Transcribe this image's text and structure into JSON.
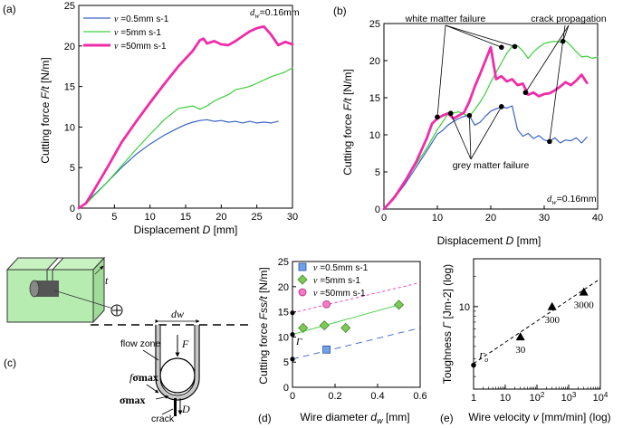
{
  "colors": {
    "blue": "#3a62c8",
    "green": "#3ccf3c",
    "magenta": "#f02ca8",
    "block": "#b6ecb0",
    "blockEdge": "#333333",
    "ptBlue": "#6fa2ea",
    "ptGreen": "#7ec857",
    "ptPink": "#f37ac6"
  },
  "chart_data": [
    {
      "panel": "(a)",
      "type": "line",
      "xlabel_pre": "Displacement ",
      "xlabel_var": "D",
      "xlabel_post": " [mm]",
      "ylabel_pre": "Cutting force ",
      "ylabel_var": "F/t",
      "ylabel_post": " [N/m]",
      "xlim": [
        0,
        30
      ],
      "ylim": [
        0,
        25
      ],
      "xticks": [
        "0",
        "5",
        "10",
        "15",
        "20",
        "25",
        "30"
      ],
      "yticks": [
        "0",
        "5",
        "10",
        "15",
        "20",
        "25"
      ],
      "annotation": "dw=0.16mm",
      "legend": [
        {
          "sym": "v",
          "text": " =0.5mm s-1",
          "color": "blue"
        },
        {
          "sym": "v",
          "text": " =5mm s-1",
          "color": "green"
        },
        {
          "sym": "v",
          "text": " =50mm s-1",
          "color": "magenta"
        }
      ],
      "series": [
        {
          "name": "v =0.5mm s-1",
          "color": "blue",
          "width": 1.2,
          "x": [
            0,
            1,
            2,
            4,
            6,
            8,
            10,
            12,
            14,
            15,
            16,
            17,
            18,
            19,
            20,
            21,
            22,
            23,
            24,
            25,
            26,
            27,
            28
          ],
          "y": [
            0,
            0.6,
            1.5,
            3.2,
            5,
            6.6,
            7.9,
            9,
            9.9,
            10.3,
            10.6,
            10.8,
            10.9,
            10.7,
            10.8,
            10.6,
            10.7,
            10.5,
            10.7,
            10.5,
            10.6,
            10.5,
            10.7
          ]
        },
        {
          "name": "v =5mm s-1",
          "color": "green",
          "width": 1.2,
          "x": [
            0,
            1,
            2,
            4,
            6,
            8,
            10,
            12,
            14,
            16,
            17,
            18,
            19,
            20,
            21,
            22,
            23,
            24,
            25,
            26,
            27,
            28,
            29,
            30
          ],
          "y": [
            0,
            0.5,
            1.4,
            3.2,
            5.2,
            7.2,
            9.1,
            10.9,
            12.3,
            12.6,
            12.2,
            12.6,
            13.2,
            13.6,
            14,
            14.6,
            14.8,
            15,
            15.4,
            15.8,
            16.2,
            16.5,
            16.8,
            17.3
          ]
        },
        {
          "name": "v =50mm s-1",
          "color": "magenta",
          "width": 2.8,
          "x": [
            0,
            1,
            2,
            4,
            6,
            8,
            10,
            12,
            14,
            16,
            17,
            17.5,
            18,
            19,
            20,
            21,
            22,
            23,
            24,
            25,
            26,
            27,
            28,
            29,
            30
          ],
          "y": [
            0,
            0.6,
            2,
            5,
            8.1,
            10.6,
            13,
            15.3,
            17.5,
            19.4,
            20.7,
            20.9,
            20.3,
            20.6,
            20.2,
            20.1,
            20.6,
            21.2,
            21.8,
            22.2,
            22.4,
            21.4,
            20.1,
            20.5,
            20.2
          ]
        }
      ]
    },
    {
      "panel": "(b)",
      "type": "line",
      "xlabel_pre": "Displacement ",
      "xlabel_var": "D",
      "xlabel_post": " [mm]",
      "ylabel_pre": "Cutting force ",
      "ylabel_var": "F/t",
      "ylabel_post": " [N/m]",
      "xlim": [
        0,
        40
      ],
      "ylim": [
        0,
        25
      ],
      "xticks": [
        "0",
        "10",
        "20",
        "30",
        "40"
      ],
      "yticks": [
        "0",
        "5",
        "10",
        "15",
        "20",
        "25"
      ],
      "annotation": "dw=0.16mm",
      "labels": {
        "wmf": "white matter failure",
        "cp": "crack propagation",
        "gmf": "grey matter failure"
      },
      "series": [
        {
          "name": "v =0.5mm s-1",
          "color": "blue",
          "width": 1.2,
          "x": [
            0,
            2,
            4,
            6,
            8,
            10,
            11,
            12,
            13,
            14,
            15,
            16,
            17,
            18,
            19,
            20,
            21,
            22,
            23,
            24,
            25,
            26,
            27,
            28,
            29,
            30,
            31,
            32,
            33,
            34,
            35,
            36,
            37,
            38
          ],
          "y": [
            0,
            1.5,
            3.4,
            5.6,
            7.8,
            10.1,
            10.6,
            11.3,
            11.8,
            12.2,
            12.5,
            12.6,
            11.3,
            11.7,
            12.5,
            13.2,
            13.5,
            13.8,
            13.6,
            13.9,
            10.7,
            9.8,
            10.2,
            9.5,
            9.9,
            9.3,
            9.1,
            9.6,
            8.9,
            9.3,
            9.2,
            9.6,
            8.9,
            9.7
          ]
        },
        {
          "name": "v =5mm s-1",
          "color": "green",
          "width": 1.2,
          "x": [
            0,
            2,
            4,
            6,
            8,
            10,
            12,
            14,
            16,
            17,
            18,
            19,
            20,
            21,
            22,
            23,
            24,
            25,
            26,
            27,
            28,
            29,
            30,
            31,
            32,
            33,
            34,
            35,
            36,
            37,
            38,
            39,
            40
          ],
          "y": [
            0,
            1.8,
            3.8,
            6,
            8.2,
            10.7,
            12.8,
            13.1,
            12.5,
            13.4,
            14.4,
            15.6,
            17.1,
            18.4,
            19.7,
            21,
            21.9,
            22,
            21.3,
            20.3,
            21.2,
            21.8,
            22.3,
            22.5,
            22.6,
            22.5,
            22.7,
            22,
            21.2,
            20.5,
            20.6,
            20.3,
            20.5
          ]
        },
        {
          "name": "v =50mm s-1",
          "color": "magenta",
          "width": 2.8,
          "x": [
            0,
            2,
            4,
            6,
            8,
            9,
            10,
            11,
            12,
            13,
            14,
            15,
            16,
            17,
            18,
            19,
            20,
            21,
            22,
            23,
            24,
            25,
            26,
            27,
            28,
            29,
            30,
            31,
            32,
            33,
            34,
            35,
            36,
            37,
            38
          ],
          "y": [
            0,
            1.6,
            3.8,
            6.3,
            9.5,
            11.5,
            12.2,
            12.6,
            12.9,
            12.2,
            12.6,
            13,
            14.5,
            16.5,
            18.2,
            20,
            21.8,
            17.5,
            17.9,
            17.2,
            17.5,
            16.7,
            16.9,
            15.4,
            15.7,
            15.2,
            15.5,
            15.6,
            16,
            16.5,
            17.1,
            16.7,
            17.3,
            18.1,
            17
          ]
        }
      ],
      "points": [
        [
          10,
          12.4
        ],
        [
          12.5,
          12.9
        ],
        [
          16,
          12.6
        ],
        [
          22,
          21.8
        ],
        [
          22,
          13.8
        ],
        [
          24.5,
          21.9
        ],
        [
          26.5,
          15.7
        ],
        [
          31,
          9.1
        ],
        [
          33.5,
          22.6
        ]
      ]
    },
    {
      "panel": "(d)",
      "type": "scatter",
      "xlabel_pre": "Wire diameter ",
      "xlabel_var": "dw",
      "xlabel_post": " [mm]",
      "ylabel_pre": "Cutting force ",
      "ylabel_var": "Fss/t",
      "ylabel_post": " [N/m]",
      "xlim": [
        0,
        0.6
      ],
      "ylim": [
        0,
        25
      ],
      "xticks": [
        "0",
        "0.2",
        "0.4",
        "0.6"
      ],
      "yticks": [
        "0",
        "5",
        "10",
        "15",
        "20",
        "25"
      ],
      "gamma": "Γ",
      "legend": [
        {
          "sym": "v",
          "text": " =0.5mm s-1",
          "marker": "square"
        },
        {
          "sym": "v",
          "text": " =5mm s-1",
          "marker": "diamond"
        },
        {
          "sym": "v",
          "text": " =50mm s-1",
          "marker": "circle"
        }
      ],
      "series": [
        {
          "name": "v =0.5mm s-1",
          "marker": "square",
          "x": [
            0.16
          ],
          "y": [
            7.5
          ],
          "fit": [
            [
              0,
              5.6
            ],
            [
              0.6,
              11.8
            ]
          ]
        },
        {
          "name": "v =5mm s-1",
          "marker": "diamond",
          "x": [
            0.05,
            0.15,
            0.25,
            0.5
          ],
          "y": [
            11.8,
            12.3,
            11.8,
            16.4
          ],
          "fit": [
            [
              0,
              10.5
            ],
            [
              0.5,
              16.4
            ]
          ]
        },
        {
          "name": "v =50mm s-1",
          "marker": "circle",
          "x": [
            0.16
          ],
          "y": [
            16.5
          ],
          "fit": [
            [
              0,
              14.8
            ],
            [
              0.6,
              20.8
            ]
          ]
        }
      ],
      "intercepts": [
        5.6,
        10.5,
        14.8
      ]
    },
    {
      "panel": "(e)",
      "type": "scatter",
      "xlabel_pre": "Wire velocity ",
      "xlabel_var": "v",
      "xlabel_post": " [mm/min] (log)",
      "ylabel_pre": "Toughness ",
      "ylabel_var": "Γ",
      "ylabel_post": " [Jm-2] (log)",
      "xlim": [
        1,
        10000
      ],
      "ylim": [
        1.5,
        30
      ],
      "xticks": [
        "1",
        "10",
        "10^2",
        "10^3",
        "10^4"
      ],
      "ytick": "10",
      "gamma0": "Γo",
      "points": [
        {
          "x": 30,
          "y": 5,
          "label": "30"
        },
        {
          "x": 300,
          "y": 10,
          "label": "300"
        },
        {
          "x": 3000,
          "y": 14,
          "label": "3000"
        }
      ],
      "origin": {
        "x": 1,
        "y": 2.6
      },
      "fit": [
        [
          1,
          2.7
        ],
        [
          10000,
          19
        ]
      ]
    }
  ],
  "schematic": {
    "panel": "(c)",
    "t": "t",
    "dw": "dw",
    "flow_zone": "flow zone",
    "F": "F",
    "sigma": "σmax",
    "fsigma": "fσmax",
    "crack": "crack",
    "D": "D"
  }
}
